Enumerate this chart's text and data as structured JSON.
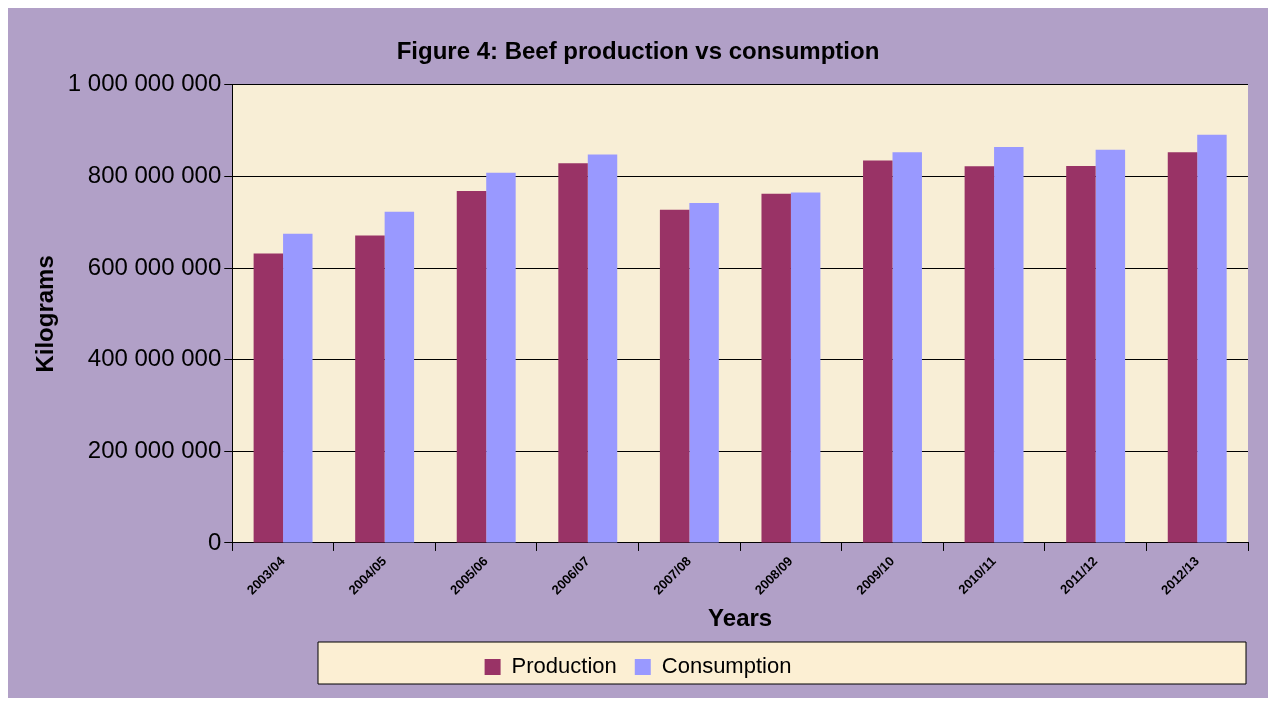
{
  "chart_data": {
    "type": "bar",
    "title": "Figure 4: Beef production vs consumption",
    "xlabel": "Years",
    "ylabel": "Kilograms",
    "categories": [
      "2003/04",
      "2004/05",
      "2005/06",
      "2006/07",
      "2007/08",
      "2008/09",
      "2009/10",
      "2010/11",
      "2011/12",
      "2012/13"
    ],
    "series": [
      {
        "name": "Production",
        "color": "#993366",
        "values": [
          632000000,
          671000000,
          768000000,
          829000000,
          727000000,
          762000000,
          835000000,
          822000000,
          823000000,
          853000000
        ]
      },
      {
        "name": "Consumption",
        "color": "#9999ff",
        "values": [
          675000000,
          723000000,
          808000000,
          848000000,
          742000000,
          765000000,
          853000000,
          864000000,
          858000000,
          891000000
        ]
      }
    ],
    "ylim": [
      0,
      1000000000
    ],
    "yticks": [
      {
        "value": 0,
        "label": "0"
      },
      {
        "value": 200000000,
        "label": "200 000 000"
      },
      {
        "value": 400000000,
        "label": "400 000 000"
      },
      {
        "value": 600000000,
        "label": "600 000 000"
      },
      {
        "value": 800000000,
        "label": "800 000 000"
      },
      {
        "value": 1000000000,
        "label": "1 000 000 000"
      }
    ],
    "grid": "y",
    "legend": "bottom"
  }
}
